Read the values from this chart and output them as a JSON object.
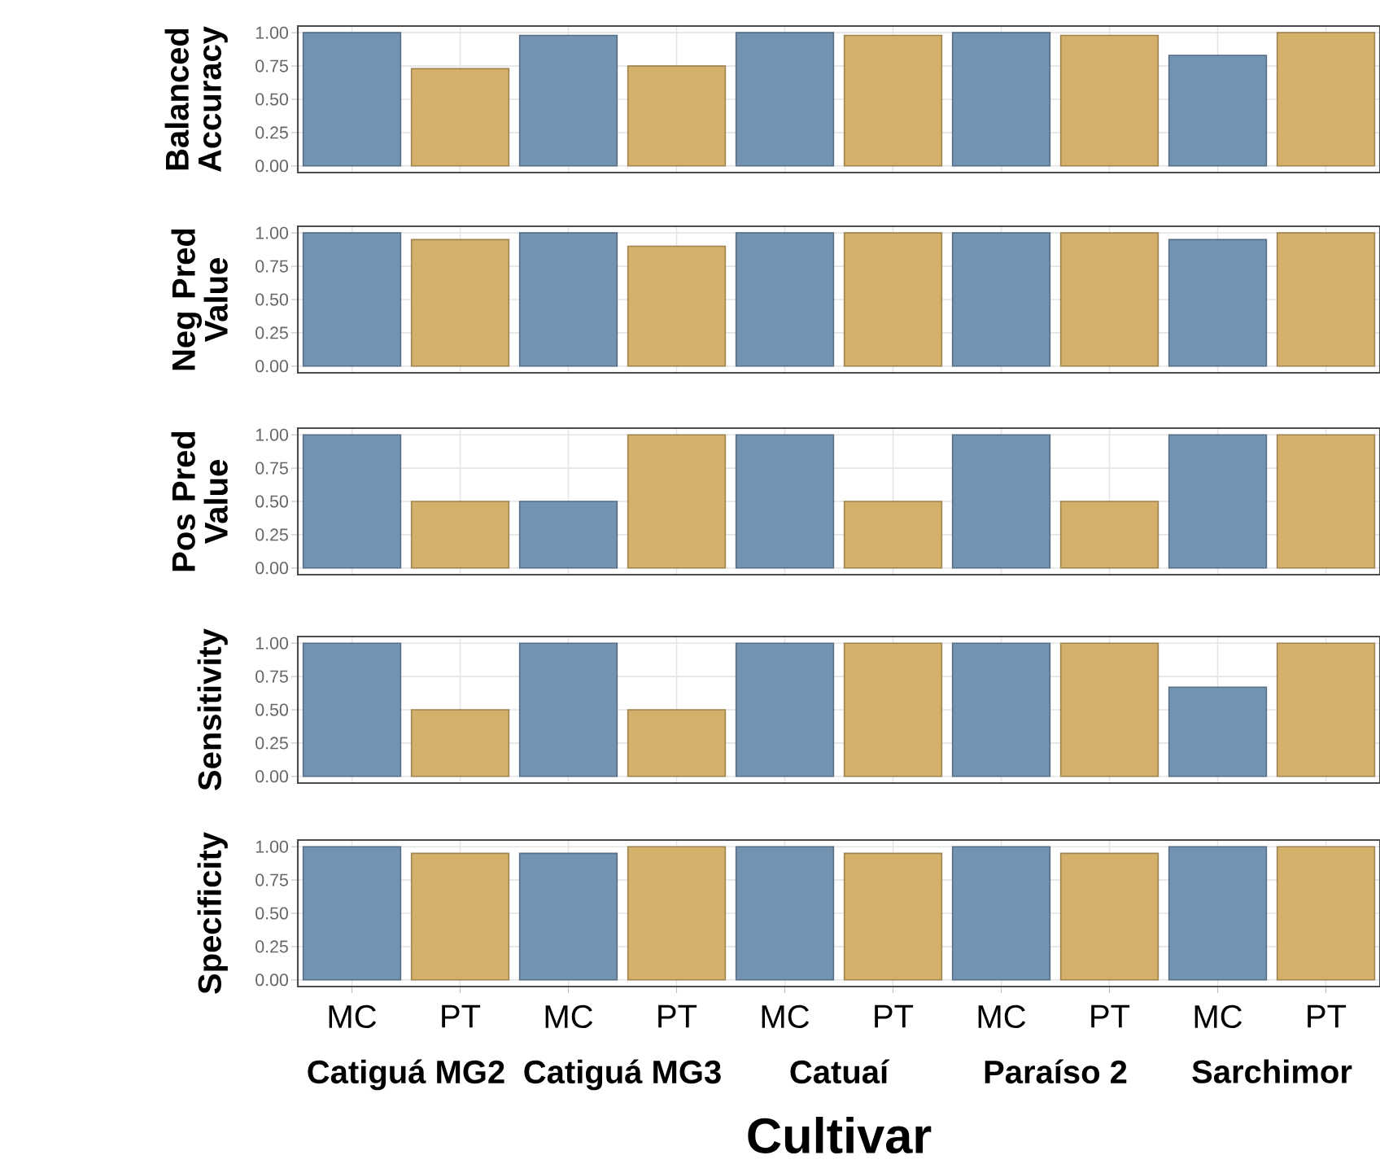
{
  "chart_data": [
    {
      "type": "bar",
      "ylabel": "Balanced Accuracy",
      "categories": [
        null,
        null,
        null,
        null,
        null,
        null,
        null,
        null,
        null,
        null
      ],
      "values": [
        1.0,
        0.73,
        0.98,
        0.75,
        1.0,
        0.98,
        1.0,
        0.98,
        0.83,
        1.0
      ],
      "colors": [
        "#7393b3",
        "#d4b06b",
        "#7393b3",
        "#d4b06b",
        "#7393b3",
        "#d4b06b",
        "#7393b3",
        "#d4b06b",
        "#7393b3",
        "#d4b06b"
      ],
      "ylim": [
        -0.05,
        1.05
      ],
      "yticks": [
        {
          "value": 0,
          "label": "0.00"
        },
        {
          "value": 0.25,
          "label": "0.25"
        },
        {
          "value": 0.5,
          "label": "0.50"
        },
        {
          "value": 0.75,
          "label": "0.75"
        },
        {
          "value": 1,
          "label": "1.00"
        }
      ],
      "grid": true,
      "tick_labels": "y"
    },
    {
      "type": "bar",
      "ylabel": "Neg Pred Value",
      "categories": [
        null,
        null,
        null,
        null,
        null,
        null,
        null,
        null,
        null,
        null
      ],
      "values": [
        1.0,
        0.95,
        1.0,
        0.9,
        1.0,
        1.0,
        1.0,
        1.0,
        0.95,
        1.0
      ],
      "colors": [
        "#7393b3",
        "#d4b06b",
        "#7393b3",
        "#d4b06b",
        "#7393b3",
        "#d4b06b",
        "#7393b3",
        "#d4b06b",
        "#7393b3",
        "#d4b06b"
      ],
      "ylim": [
        -0.05,
        1.05
      ],
      "yticks": [
        {
          "value": 0,
          "label": "0.00"
        },
        {
          "value": 0.25,
          "label": "0.25"
        },
        {
          "value": 0.5,
          "label": "0.50"
        },
        {
          "value": 0.75,
          "label": "0.75"
        },
        {
          "value": 1,
          "label": "1.00"
        }
      ],
      "grid": true,
      "tick_labels": "y"
    },
    {
      "type": "bar",
      "ylabel": "Pos Pred Value",
      "categories": [
        null,
        null,
        null,
        null,
        null,
        null,
        null,
        null,
        null,
        null
      ],
      "values": [
        1.0,
        0.5,
        0.5,
        1.0,
        1.0,
        0.5,
        1.0,
        0.5,
        1.0,
        1.0
      ],
      "colors": [
        "#7393b3",
        "#d4b06b",
        "#7393b3",
        "#d4b06b",
        "#7393b3",
        "#d4b06b",
        "#7393b3",
        "#d4b06b",
        "#7393b3",
        "#d4b06b"
      ],
      "ylim": [
        -0.05,
        1.05
      ],
      "yticks": [
        {
          "value": 0,
          "label": "0.00"
        },
        {
          "value": 0.25,
          "label": "0.25"
        },
        {
          "value": 0.5,
          "label": "0.50"
        },
        {
          "value": 0.75,
          "label": "0.75"
        },
        {
          "value": 1,
          "label": "1.00"
        }
      ],
      "grid": true,
      "tick_labels": "y"
    },
    {
      "type": "bar",
      "ylabel": "Sensitivity",
      "categories": [
        null,
        null,
        null,
        null,
        null,
        null,
        null,
        null,
        null,
        null
      ],
      "values": [
        1.0,
        0.5,
        1.0,
        0.5,
        1.0,
        1.0,
        1.0,
        1.0,
        0.67,
        1.0
      ],
      "colors": [
        "#7393b3",
        "#d4b06b",
        "#7393b3",
        "#d4b06b",
        "#7393b3",
        "#d4b06b",
        "#7393b3",
        "#d4b06b",
        "#7393b3",
        "#d4b06b"
      ],
      "ylim": [
        -0.05,
        1.05
      ],
      "yticks": [
        {
          "value": 0,
          "label": "0.00"
        },
        {
          "value": 0.25,
          "label": "0.25"
        },
        {
          "value": 0.5,
          "label": "0.50"
        },
        {
          "value": 0.75,
          "label": "0.75"
        },
        {
          "value": 1,
          "label": "1.00"
        }
      ],
      "grid": true,
      "tick_labels": "y"
    },
    {
      "type": "bar",
      "ylabel": "Specificity",
      "xlabel": "Cultivar",
      "categories": [
        "MC",
        "PT",
        "MC",
        "PT",
        "MC",
        "PT",
        "MC",
        "PT",
        "MC",
        "PT"
      ],
      "values": [
        1.0,
        0.95,
        0.95,
        1.0,
        1.0,
        0.95,
        1.0,
        0.95,
        1.0,
        1.0
      ],
      "colors": [
        "#7393b3",
        "#d4b06b",
        "#7393b3",
        "#d4b06b",
        "#7393b3",
        "#d4b06b",
        "#7393b3",
        "#d4b06b",
        "#7393b3",
        "#d4b06b"
      ],
      "ylim": [
        -0.05,
        1.05
      ],
      "yticks": [
        {
          "value": 0,
          "label": "0.00"
        },
        {
          "value": 0.25,
          "label": "0.25"
        },
        {
          "value": 0.5,
          "label": "0.50"
        },
        {
          "value": 0.75,
          "label": "0.75"
        },
        {
          "value": 1,
          "label": "1.00"
        }
      ],
      "grid": true,
      "annotations": [
        "Catiguá MG2",
        "Catiguá MG3",
        "Catuaí",
        "Paraíso 2",
        "Sarchimor"
      ]
    }
  ]
}
